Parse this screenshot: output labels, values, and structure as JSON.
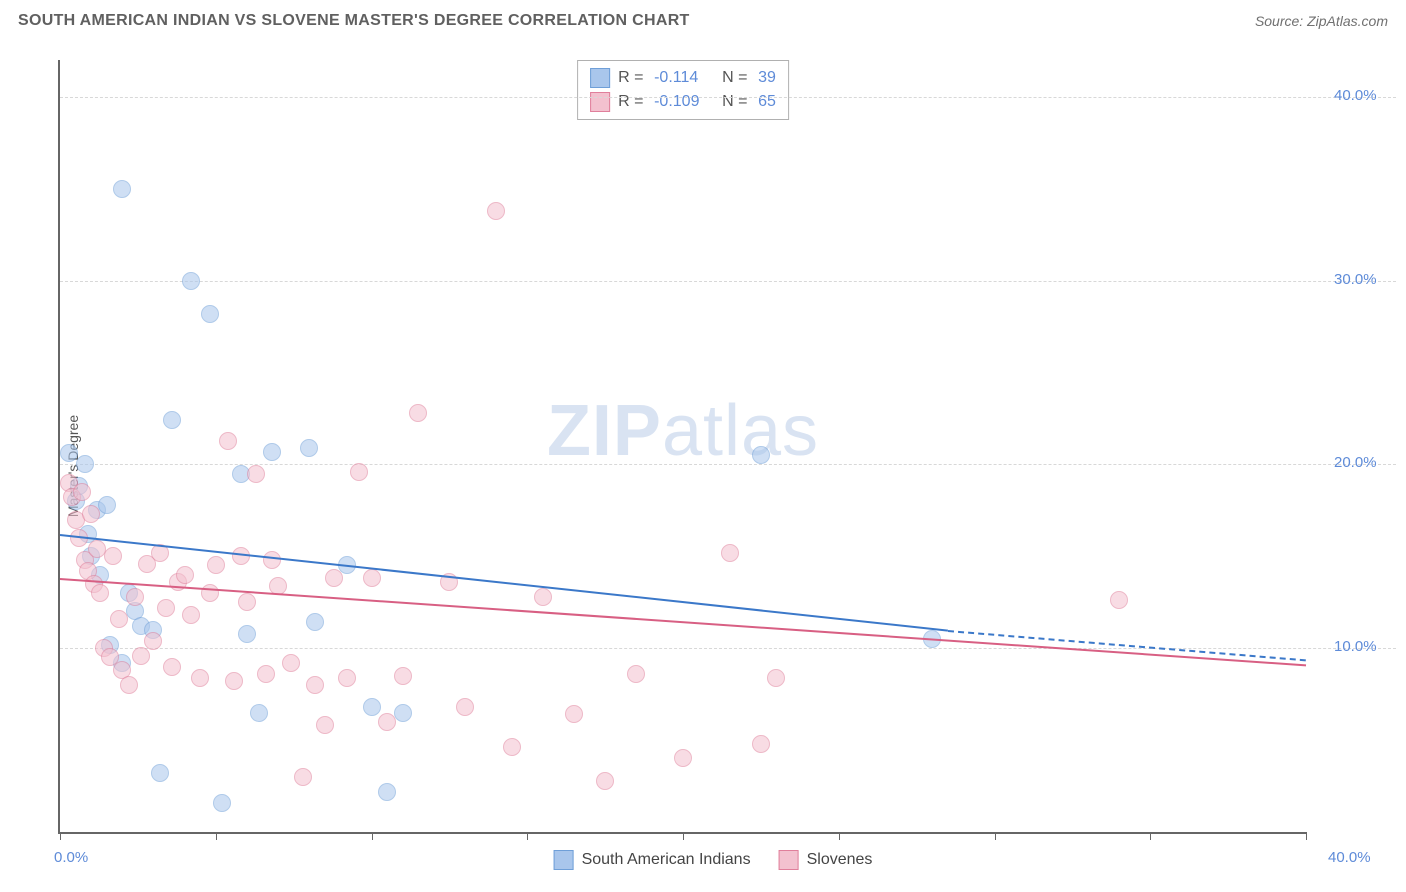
{
  "header": {
    "title": "SOUTH AMERICAN INDIAN VS SLOVENE MASTER'S DEGREE CORRELATION CHART",
    "source_prefix": "Source: ",
    "source_name": "ZipAtlas.com"
  },
  "watermark": {
    "part1": "ZIP",
    "part2": "atlas"
  },
  "chart": {
    "type": "scatter",
    "ylabel": "Master's Degree",
    "xlim": [
      0,
      40
    ],
    "ylim": [
      0,
      42
    ],
    "x_ticks": [
      0,
      5,
      10,
      15,
      20,
      25,
      30,
      35,
      40
    ],
    "x_tick_labels": {
      "0": "0.0%",
      "40": "40.0%"
    },
    "y_gridlines": [
      10,
      20,
      30,
      40
    ],
    "y_tick_labels": {
      "10": "10.0%",
      "20": "20.0%",
      "30": "30.0%",
      "40": "40.0%"
    },
    "background_color": "#ffffff",
    "grid_color": "#d8d8d8",
    "axis_color": "#666666",
    "tick_label_color": "#5e8bd8",
    "point_radius": 9,
    "point_opacity": 0.55,
    "series": [
      {
        "name": "South American Indians",
        "fill": "#a9c6ec",
        "stroke": "#6f9fd8",
        "R": "-0.114",
        "N": "39",
        "trend": {
          "x1": 0,
          "y1": 16.2,
          "x2": 28.5,
          "y2": 11.0,
          "dash_to_x": 40,
          "dash_to_y": 9.4,
          "color": "#3b78c9"
        },
        "points": [
          [
            0.3,
            20.6
          ],
          [
            0.5,
            18.0
          ],
          [
            0.6,
            18.8
          ],
          [
            0.8,
            20.0
          ],
          [
            0.9,
            16.2
          ],
          [
            1.0,
            15.0
          ],
          [
            1.2,
            17.5
          ],
          [
            1.3,
            14.0
          ],
          [
            1.5,
            17.8
          ],
          [
            1.6,
            10.2
          ],
          [
            2.0,
            35.0
          ],
          [
            2.0,
            9.2
          ],
          [
            2.2,
            13.0
          ],
          [
            2.4,
            12.0
          ],
          [
            2.6,
            11.2
          ],
          [
            3.0,
            11.0
          ],
          [
            3.2,
            3.2
          ],
          [
            3.6,
            22.4
          ],
          [
            4.2,
            30.0
          ],
          [
            4.8,
            28.2
          ],
          [
            5.2,
            1.6
          ],
          [
            5.8,
            19.5
          ],
          [
            6.0,
            10.8
          ],
          [
            6.4,
            6.5
          ],
          [
            6.8,
            20.7
          ],
          [
            8.0,
            20.9
          ],
          [
            8.2,
            11.4
          ],
          [
            9.2,
            14.5
          ],
          [
            10.0,
            6.8
          ],
          [
            10.5,
            2.2
          ],
          [
            11.0,
            6.5
          ],
          [
            22.5,
            20.5
          ],
          [
            28.0,
            10.5
          ]
        ]
      },
      {
        "name": "Slovenes",
        "fill": "#f3c1cf",
        "stroke": "#e07f9b",
        "R": "-0.109",
        "N": "65",
        "trend": {
          "x1": 0,
          "y1": 13.8,
          "x2": 40,
          "y2": 9.1,
          "color": "#d85f83"
        },
        "points": [
          [
            0.3,
            19.0
          ],
          [
            0.4,
            18.2
          ],
          [
            0.5,
            17.0
          ],
          [
            0.6,
            16.0
          ],
          [
            0.7,
            18.5
          ],
          [
            0.8,
            14.8
          ],
          [
            0.9,
            14.2
          ],
          [
            1.0,
            17.3
          ],
          [
            1.1,
            13.5
          ],
          [
            1.2,
            15.4
          ],
          [
            1.3,
            13.0
          ],
          [
            1.4,
            10.0
          ],
          [
            1.6,
            9.5
          ],
          [
            1.7,
            15.0
          ],
          [
            1.9,
            11.6
          ],
          [
            2.0,
            8.8
          ],
          [
            2.2,
            8.0
          ],
          [
            2.4,
            12.8
          ],
          [
            2.6,
            9.6
          ],
          [
            2.8,
            14.6
          ],
          [
            3.0,
            10.4
          ],
          [
            3.2,
            15.2
          ],
          [
            3.4,
            12.2
          ],
          [
            3.6,
            9.0
          ],
          [
            3.8,
            13.6
          ],
          [
            4.0,
            14.0
          ],
          [
            4.2,
            11.8
          ],
          [
            4.5,
            8.4
          ],
          [
            4.8,
            13.0
          ],
          [
            5.0,
            14.5
          ],
          [
            5.4,
            21.3
          ],
          [
            5.6,
            8.2
          ],
          [
            5.8,
            15.0
          ],
          [
            6.0,
            12.5
          ],
          [
            6.3,
            19.5
          ],
          [
            6.6,
            8.6
          ],
          [
            6.8,
            14.8
          ],
          [
            7.0,
            13.4
          ],
          [
            7.4,
            9.2
          ],
          [
            7.8,
            3.0
          ],
          [
            8.2,
            8.0
          ],
          [
            8.5,
            5.8
          ],
          [
            8.8,
            13.8
          ],
          [
            9.2,
            8.4
          ],
          [
            9.6,
            19.6
          ],
          [
            10.0,
            13.8
          ],
          [
            10.5,
            6.0
          ],
          [
            11.0,
            8.5
          ],
          [
            11.5,
            22.8
          ],
          [
            12.5,
            13.6
          ],
          [
            13.0,
            6.8
          ],
          [
            14.0,
            33.8
          ],
          [
            14.5,
            4.6
          ],
          [
            15.5,
            12.8
          ],
          [
            16.5,
            6.4
          ],
          [
            17.5,
            2.8
          ],
          [
            18.5,
            8.6
          ],
          [
            20.0,
            4.0
          ],
          [
            21.5,
            15.2
          ],
          [
            22.5,
            4.8
          ],
          [
            23.0,
            8.4
          ],
          [
            34.0,
            12.6
          ]
        ]
      }
    ]
  },
  "legend_top_labels": {
    "R": "R =",
    "N": "N ="
  },
  "legend_bottom": [
    {
      "swatch_fill": "#a9c6ec",
      "swatch_stroke": "#6f9fd8",
      "label": "South American Indians"
    },
    {
      "swatch_fill": "#f3c1cf",
      "swatch_stroke": "#e07f9b",
      "label": "Slovenes"
    }
  ]
}
